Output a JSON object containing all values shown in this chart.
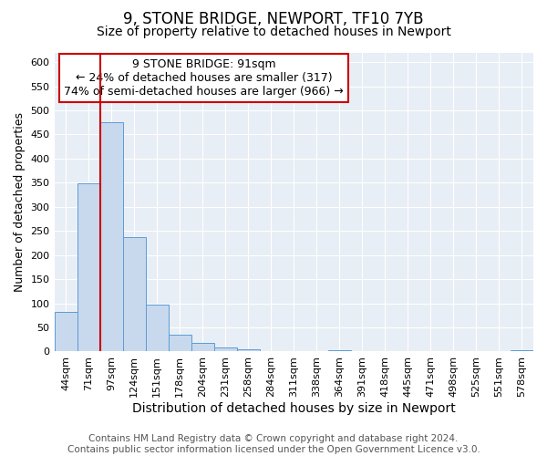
{
  "title": "9, STONE BRIDGE, NEWPORT, TF10 7YB",
  "subtitle": "Size of property relative to detached houses in Newport",
  "xlabel": "Distribution of detached houses by size in Newport",
  "ylabel": "Number of detached properties",
  "bin_labels": [
    "44sqm",
    "71sqm",
    "97sqm",
    "124sqm",
    "151sqm",
    "178sqm",
    "204sqm",
    "231sqm",
    "258sqm",
    "284sqm",
    "311sqm",
    "338sqm",
    "364sqm",
    "391sqm",
    "418sqm",
    "445sqm",
    "471sqm",
    "498sqm",
    "525sqm",
    "551sqm",
    "578sqm"
  ],
  "bar_values": [
    83,
    348,
    476,
    237,
    97,
    35,
    18,
    8,
    5,
    0,
    0,
    0,
    2,
    0,
    0,
    1,
    0,
    0,
    0,
    0,
    2
  ],
  "bar_color": "#c8d9ee",
  "bar_edge_color": "#5b9bd5",
  "vline_color": "#cc0000",
  "vline_pos": 1.5,
  "ylim": [
    0,
    620
  ],
  "yticks": [
    0,
    50,
    100,
    150,
    200,
    250,
    300,
    350,
    400,
    450,
    500,
    550,
    600
  ],
  "ann_line1": "9 STONE BRIDGE: 91sqm",
  "ann_line2": "← 24% of detached houses are smaller (317)",
  "ann_line3": "74% of semi-detached houses are larger (966) →",
  "footer_line1": "Contains HM Land Registry data © Crown copyright and database right 2024.",
  "footer_line2": "Contains public sector information licensed under the Open Government Licence v3.0.",
  "fig_bg": "#ffffff",
  "plot_bg": "#e8eef5",
  "grid_color": "#ffffff",
  "title_fontsize": 12,
  "subtitle_fontsize": 10,
  "xlabel_fontsize": 10,
  "ylabel_fontsize": 9,
  "tick_fontsize": 8,
  "ann_fontsize": 9,
  "footer_fontsize": 7.5
}
